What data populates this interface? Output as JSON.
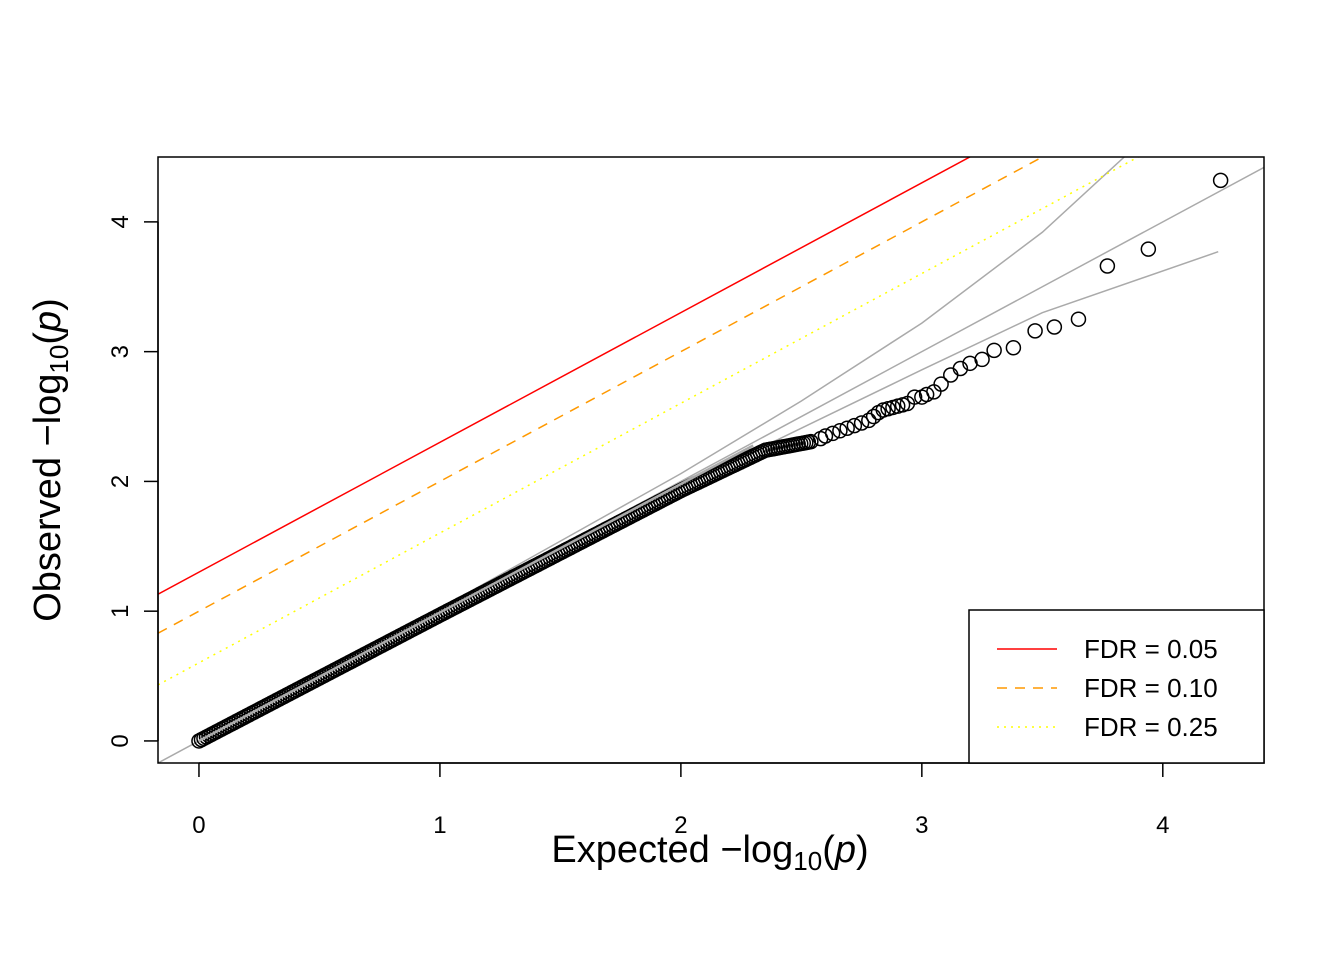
{
  "chart_data": {
    "type": "scatter",
    "title": "",
    "xlabel": {
      "prefix": "Expected  −log",
      "sub": "10",
      "paren_open": "(",
      "var": "p",
      "paren_close": ")"
    },
    "ylabel": {
      "prefix": "Observed  −log",
      "sub": "10",
      "paren_open": "(",
      "var": "p",
      "paren_close": ")"
    },
    "xlim": [
      -0.17,
      4.42
    ],
    "ylim": [
      -0.17,
      4.5
    ],
    "x_ticks": [
      {
        "value": 0,
        "label": "0"
      },
      {
        "value": 1,
        "label": "1"
      },
      {
        "value": 2,
        "label": "2"
      },
      {
        "value": 3,
        "label": "3"
      },
      {
        "value": 4,
        "label": "4"
      }
    ],
    "y_ticks": [
      {
        "value": 0,
        "label": "0"
      },
      {
        "value": 1,
        "label": "1"
      },
      {
        "value": 2,
        "label": "2"
      },
      {
        "value": 3,
        "label": "3"
      },
      {
        "value": 4,
        "label": "4"
      }
    ],
    "grid": false,
    "legend_placement": "bottom-right",
    "series": [
      {
        "name": "FDR = 0.05",
        "kind": "line",
        "style": "solid",
        "color": "#ff0000",
        "intercept": 1.301,
        "slope": 1
      },
      {
        "name": "FDR = 0.10",
        "kind": "line",
        "style": "dashed",
        "color": "#ff9900",
        "intercept": 1.0,
        "slope": 1
      },
      {
        "name": "FDR = 0.25",
        "kind": "line",
        "style": "dotted",
        "color": "#ffff00",
        "intercept": 0.602,
        "slope": 1
      }
    ],
    "reference": {
      "color": "#aaaaaa",
      "intercept": 0,
      "slope": 1
    },
    "confidence_band": {
      "color": "#aaaaaa",
      "upper": [
        [
          0,
          0.02
        ],
        [
          1,
          1.02
        ],
        [
          2,
          2.06
        ],
        [
          2.5,
          2.62
        ],
        [
          3,
          3.22
        ],
        [
          3.5,
          3.92
        ],
        [
          3.84,
          4.5
        ]
      ],
      "lower": [
        [
          0,
          0
        ],
        [
          1,
          0.98
        ],
        [
          2,
          1.96
        ],
        [
          2.5,
          2.41
        ],
        [
          3,
          2.86
        ],
        [
          3.5,
          3.3
        ],
        [
          4.23,
          3.77
        ]
      ]
    },
    "points": {
      "color": "#000000",
      "dense_segments": [
        [
          0,
          0
        ],
        [
          1,
          0.97
        ],
        [
          2,
          1.93
        ],
        [
          2.35,
          2.24
        ],
        [
          2.55,
          2.31
        ]
      ],
      "tail": [
        [
          2.58,
          2.33
        ],
        [
          2.6,
          2.35
        ],
        [
          2.63,
          2.37
        ],
        [
          2.66,
          2.39
        ],
        [
          2.69,
          2.41
        ],
        [
          2.72,
          2.43
        ],
        [
          2.75,
          2.45
        ],
        [
          2.78,
          2.47
        ],
        [
          2.8,
          2.5
        ],
        [
          2.82,
          2.53
        ],
        [
          2.84,
          2.55
        ],
        [
          2.86,
          2.56
        ],
        [
          2.88,
          2.57
        ],
        [
          2.9,
          2.58
        ],
        [
          2.92,
          2.59
        ],
        [
          2.94,
          2.6
        ],
        [
          2.97,
          2.65
        ],
        [
          3.0,
          2.65
        ],
        [
          3.02,
          2.67
        ],
        [
          3.05,
          2.69
        ],
        [
          3.08,
          2.75
        ],
        [
          3.12,
          2.82
        ],
        [
          3.16,
          2.87
        ],
        [
          3.2,
          2.91
        ],
        [
          3.25,
          2.94
        ],
        [
          3.3,
          3.01
        ],
        [
          3.38,
          3.03
        ],
        [
          3.47,
          3.16
        ],
        [
          3.55,
          3.19
        ],
        [
          3.65,
          3.25
        ],
        [
          3.77,
          3.66
        ],
        [
          3.94,
          3.79
        ],
        [
          4.24,
          4.32
        ]
      ]
    }
  }
}
